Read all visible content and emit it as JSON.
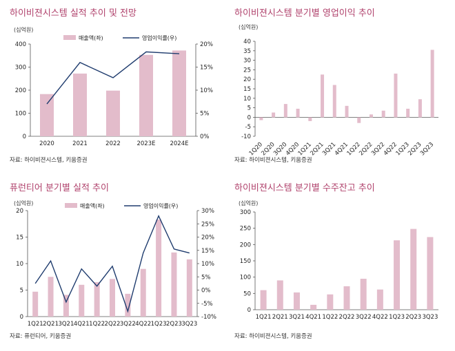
{
  "colors": {
    "bar": "#e3bccb",
    "line": "#1f3c6e",
    "title": "#b0426c",
    "axis": "#555555"
  },
  "panels": [
    {
      "title": "하이비젼시스템 실적 추이 및 전망",
      "unit": "(십억원)",
      "source": "자료: 하이비젼시스템, 키움증권",
      "chart_data": {
        "type": "bar",
        "categories": [
          "2020",
          "2021",
          "2022",
          "2023E",
          "2024E"
        ],
        "series": [
          {
            "name": "매출액(좌)",
            "type": "bar",
            "axis": "left",
            "values": [
              183,
              272,
              198,
              353,
              372
            ]
          },
          {
            "name": "영업이익률(우)",
            "type": "line",
            "axis": "right",
            "values": [
              7.0,
              16.0,
              12.7,
              18.3,
              17.9
            ]
          }
        ],
        "ylim": [
          0,
          400
        ],
        "yticks": [
          "0",
          "100",
          "200",
          "300",
          "400"
        ],
        "y2lim": [
          0,
          20
        ],
        "y2ticks": [
          "0%",
          "5%",
          "10%",
          "15%",
          "20%"
        ],
        "legend": "top"
      }
    },
    {
      "title": "하이비젼시스템 분기별 영업이익 추이",
      "unit": "(십억원)",
      "source": "자료: 하이비젼시스템, 키움증권",
      "chart_data": {
        "type": "bar",
        "categories": [
          "1Q20",
          "2Q20",
          "3Q20",
          "4Q20",
          "1Q21",
          "2Q21",
          "3Q21",
          "4Q21",
          "1Q22",
          "2Q22",
          "3Q22",
          "4Q22",
          "1Q23",
          "2Q23",
          "3Q23"
        ],
        "series": [
          {
            "name": "",
            "type": "bar",
            "axis": "left",
            "values": [
              -1.5,
              2.5,
              7.0,
              4.5,
              -2.0,
              22.5,
              17.0,
              6.0,
              -3.0,
              1.5,
              3.5,
              23.0,
              4.5,
              9.5,
              35.5
            ]
          }
        ],
        "ylim": [
          -10,
          40
        ],
        "yticks": [
          "-10",
          "-5",
          "0",
          "5",
          "10",
          "15",
          "20",
          "25",
          "30",
          "35",
          "40"
        ]
      }
    },
    {
      "title": "퓨런티어 분기별 실적 추이",
      "unit": "(십억원)",
      "source": "자료: 퓨런티어, 키움증권",
      "chart_data": {
        "type": "bar",
        "categories": [
          "1Q21",
          "2Q21",
          "3Q21",
          "4Q21",
          "1Q22",
          "2Q22",
          "3Q22",
          "4Q22",
          "1Q23",
          "2Q23",
          "3Q23"
        ],
        "series": [
          {
            "name": "매출액(좌)",
            "type": "bar",
            "axis": "left",
            "values": [
              4.7,
              7.5,
              4.1,
              6.0,
              6.5,
              7.1,
              4.3,
              9.0,
              18.3,
              12.1,
              10.8
            ]
          },
          {
            "name": "영업이익률(우)",
            "type": "line",
            "axis": "right",
            "values": [
              2.5,
              11.0,
              -4.5,
              8.0,
              1.5,
              9.0,
              -8.0,
              14.0,
              28.0,
              15.5,
              14.0
            ]
          }
        ],
        "ylim": [
          0,
          20
        ],
        "yticks": [
          "0",
          "5",
          "10",
          "15",
          "20"
        ],
        "y2lim": [
          -10,
          30
        ],
        "y2ticks": [
          "-10%",
          "-5%",
          "0%",
          "5%",
          "10%",
          "15%",
          "20%",
          "25%",
          "30%"
        ],
        "legend": "top"
      }
    },
    {
      "title": "하이비젼시스템 분기별 수주잔고 추이",
      "unit": "(십억원)",
      "source": "자료: 하이비젼시스템, 키움증권",
      "chart_data": {
        "type": "bar",
        "categories": [
          "1Q21",
          "2Q21",
          "3Q21",
          "4Q21",
          "1Q22",
          "2Q22",
          "3Q22",
          "4Q22",
          "1Q23",
          "2Q23",
          "3Q23"
        ],
        "series": [
          {
            "name": "",
            "type": "bar",
            "axis": "left",
            "values": [
              60,
              90,
              53,
              15,
              47,
              72,
              95,
              62,
              213,
              248,
              223
            ]
          }
        ],
        "ylim": [
          0,
          300
        ],
        "yticks": [
          "0",
          "50",
          "100",
          "150",
          "200",
          "250",
          "300"
        ]
      }
    }
  ]
}
